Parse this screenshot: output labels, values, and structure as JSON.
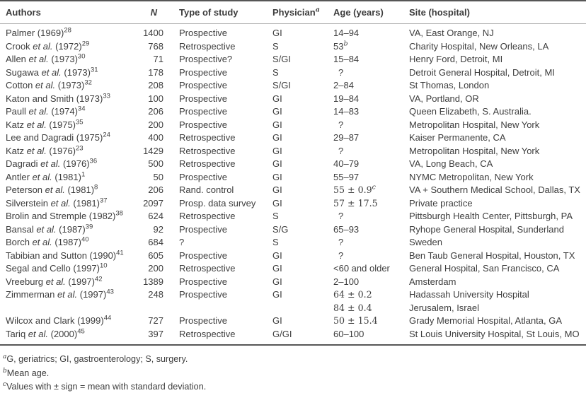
{
  "header": {
    "authors": "Authors",
    "n": "N",
    "type": "Type of study",
    "physician": "Physician",
    "physician_sup": "a",
    "age": "Age (years)",
    "site": "Site (hospital)"
  },
  "rows": [
    {
      "author_pre": "Palmer",
      "etal": false,
      "author_post": " (1969)",
      "ref": "28",
      "n": "1400",
      "type": "Prospective",
      "physician": "GI",
      "age": "14–94",
      "age_sup": "",
      "age_math": false,
      "site": "VA, East Orange, NJ"
    },
    {
      "author_pre": "Crook",
      "etal": true,
      "author_post": " (1972)",
      "ref": "29",
      "n": "768",
      "type": "Retrospective",
      "physician": "S",
      "age": "53",
      "age_sup": "b",
      "age_math": false,
      "site": "Charity Hospital, New Orleans, LA"
    },
    {
      "author_pre": "Allen",
      "etal": true,
      "author_post": " (1973)",
      "ref": "30",
      "n": "71",
      "type": "Prospective?",
      "physician": "S/GI",
      "age": "15–84",
      "age_sup": "",
      "age_math": false,
      "site": "Henry Ford, Detroit, MI"
    },
    {
      "author_pre": "Sugawa",
      "etal": true,
      "author_post": " (1973)",
      "ref": "31",
      "n": "178",
      "type": "Prospective",
      "physician": "S",
      "age": "?",
      "age_sup": "",
      "age_math": false,
      "site": "Detroit General Hospital, Detroit, MI"
    },
    {
      "author_pre": "Cotton",
      "etal": true,
      "author_post": " (1973)",
      "ref": "32",
      "n": "208",
      "type": "Prospective",
      "physician": "S/GI",
      "age": "2–84",
      "age_sup": "",
      "age_math": false,
      "site": "St Thomas, London"
    },
    {
      "author_pre": "Katon and Smith",
      "etal": false,
      "author_post": " (1973)",
      "ref": "33",
      "n": "100",
      "type": "Prospective",
      "physician": "GI",
      "age": "19–84",
      "age_sup": "",
      "age_math": false,
      "site": "VA, Portland, OR"
    },
    {
      "author_pre": "Paull",
      "etal": true,
      "author_post": " (1974)",
      "ref": "34",
      "n": "206",
      "type": "Prospective",
      "physician": "GI",
      "age": "14–83",
      "age_sup": "",
      "age_math": false,
      "site": "Queen Elizabeth, S. Australia."
    },
    {
      "author_pre": "Katz",
      "etal": true,
      "author_post": " (1975)",
      "ref": "35",
      "n": "200",
      "type": "Prospective",
      "physician": "GI",
      "age": "?",
      "age_sup": "",
      "age_math": false,
      "site": "Metropolitan Hospital, New York"
    },
    {
      "author_pre": "Lee and Dagradi",
      "etal": false,
      "author_post": " (1975)",
      "ref": "24",
      "n": "400",
      "type": "Retrospective",
      "physician": "GI",
      "age": "29–87",
      "age_sup": "",
      "age_math": false,
      "site": "Kaiser Permanente, CA"
    },
    {
      "author_pre": "Katz",
      "etal": true,
      "author_post": " (1976)",
      "ref": "23",
      "n": "1429",
      "type": "Retrospective",
      "physician": "GI",
      "age": "?",
      "age_sup": "",
      "age_math": false,
      "site": "Metropolitan Hospital, New York"
    },
    {
      "author_pre": "Dagradi",
      "etal": true,
      "author_post": " (1976)",
      "ref": "36",
      "n": "500",
      "type": "Retrospective",
      "physician": "GI",
      "age": "40–79",
      "age_sup": "",
      "age_math": false,
      "site": "VA, Long Beach, CA"
    },
    {
      "author_pre": "Antler",
      "etal": true,
      "author_post": " (1981)",
      "ref": "1",
      "n": "50",
      "type": "Prospective",
      "physician": "GI",
      "age": "55–97",
      "age_sup": "",
      "age_math": false,
      "site": "NYMC Metropolitan, New York"
    },
    {
      "author_pre": "Peterson",
      "etal": true,
      "author_post": " (1981)",
      "ref": "8",
      "n": "206",
      "type": "Rand. control",
      "physician": "GI",
      "age": "55 ± 0.9",
      "age_sup": "c",
      "age_math": true,
      "site": "VA + Southern Medical School, Dallas, TX"
    },
    {
      "author_pre": "Silverstein",
      "etal": true,
      "author_post": " (1981)",
      "ref": "37",
      "n": "2097",
      "type": "Prosp. data survey",
      "physician": "GI",
      "age": "57 ± 17.5",
      "age_sup": "",
      "age_math": true,
      "site": "Private practice"
    },
    {
      "author_pre": "Brolin and Stremple",
      "etal": false,
      "author_post": " (1982)",
      "ref": "38",
      "n": "624",
      "type": "Retrospective",
      "physician": "S",
      "age": "?",
      "age_sup": "",
      "age_math": false,
      "site": "Pittsburgh Health Center, Pittsburgh, PA"
    },
    {
      "author_pre": "Bansal",
      "etal": true,
      "author_post": " (1987)",
      "ref": "39",
      "n": "92",
      "type": "Prospective",
      "physician": "S/G",
      "age": "65–93",
      "age_sup": "",
      "age_math": false,
      "site": "Ryhope General Hospital, Sunderland"
    },
    {
      "author_pre": "Borch",
      "etal": true,
      "author_post": " (1987)",
      "ref": "40",
      "n": "684",
      "type": "?",
      "physician": "S",
      "age": "?",
      "age_sup": "",
      "age_math": false,
      "site": "Sweden"
    },
    {
      "author_pre": "Tabibian and Sutton",
      "etal": false,
      "author_post": " (1990)",
      "ref": "41",
      "n": "605",
      "type": "Prospective",
      "physician": "GI",
      "age": "?",
      "age_sup": "",
      "age_math": false,
      "site": "Ben Taub General Hospital, Houston, TX"
    },
    {
      "author_pre": "Segal and Cello",
      "etal": false,
      "author_post": " (1997)",
      "ref": "10",
      "n": "200",
      "type": "Retrospective",
      "physician": "GI",
      "age": "<60 and older",
      "age_sup": "",
      "age_math": false,
      "site": "General Hospital, San Francisco, CA"
    },
    {
      "author_pre": "Vreeburg",
      "etal": true,
      "author_post": " (1997)",
      "ref": "42",
      "n": "1389",
      "type": "Prospective",
      "physician": "GI",
      "age": "2–100",
      "age_sup": "",
      "age_math": false,
      "site": "Amsterdam"
    },
    {
      "author_pre": "Zimmerman",
      "etal": true,
      "author_post": " (1997)",
      "ref": "43",
      "n": "248",
      "type": "Prospective",
      "physician": "GI",
      "age": "64 ± 0.2",
      "age_sup": "",
      "age_math": true,
      "site": "Hadassah University Hospital"
    },
    {
      "author_pre": "",
      "etal": false,
      "author_post": "",
      "ref": "",
      "n": "",
      "type": "",
      "physician": "",
      "age": "84 ± 0.4",
      "age_sup": "",
      "age_math": true,
      "site": "Jerusalem, Israel"
    },
    {
      "author_pre": "Wilcox and Clark",
      "etal": false,
      "author_post": " (1999)",
      "ref": "44",
      "n": "727",
      "type": "Prospective",
      "physician": "GI",
      "age": "50 ± 15.4",
      "age_sup": "",
      "age_math": true,
      "site": "Grady Memorial Hospital, Atlanta, GA"
    },
    {
      "author_pre": "Tariq",
      "etal": true,
      "author_post": " (2000)",
      "ref": "45",
      "n": "397",
      "type": "Retrospective",
      "physician": "G/GI",
      "age": "60–100",
      "age_sup": "",
      "age_math": false,
      "site": "St Louis University Hospital, St Louis, MO"
    }
  ],
  "footnotes": [
    {
      "sup": "a",
      "text": "G, geriatrics; GI, gastroenterology; S, surgery."
    },
    {
      "sup": "b",
      "text": "Mean age."
    },
    {
      "sup": "c",
      "text": "Values with ± sign = mean with standard deviation."
    }
  ]
}
